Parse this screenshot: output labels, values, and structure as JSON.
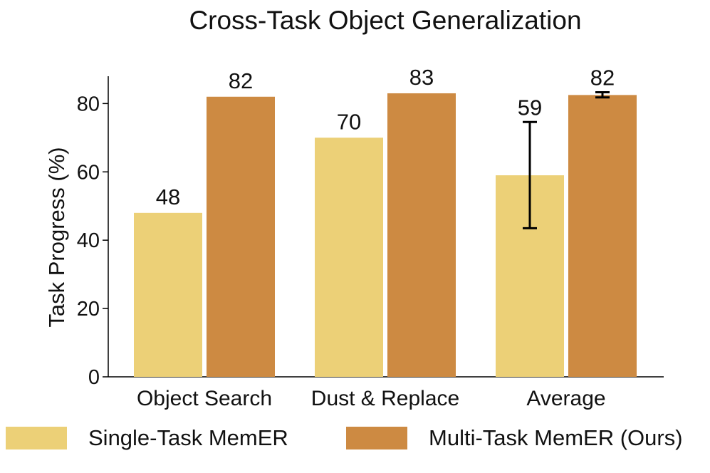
{
  "chart_data": {
    "type": "bar",
    "title": "Cross-Task Object Generalization",
    "ylabel": "Task Progress (%)",
    "xlabel": "",
    "ylim": [
      0,
      88
    ],
    "yticks": [
      0,
      20,
      40,
      60,
      80
    ],
    "categories": [
      "Object Search",
      "Dust & Replace",
      "Average"
    ],
    "series": [
      {
        "name": "Single-Task MemER",
        "color": "#ecd077",
        "values": [
          48,
          70,
          59
        ],
        "labels": [
          "48",
          "70",
          "59"
        ],
        "error": [
          null,
          null,
          [
            43.5,
            74.6
          ]
        ]
      },
      {
        "name": "Multi-Task MemER (Ours)",
        "color": "#cd8a42",
        "values": [
          82,
          83,
          82.5
        ],
        "labels": [
          "82",
          "83",
          "82"
        ],
        "error": [
          null,
          null,
          [
            81.8,
            83.3
          ]
        ]
      }
    ],
    "grid": false,
    "legend_position": "bottom"
  }
}
